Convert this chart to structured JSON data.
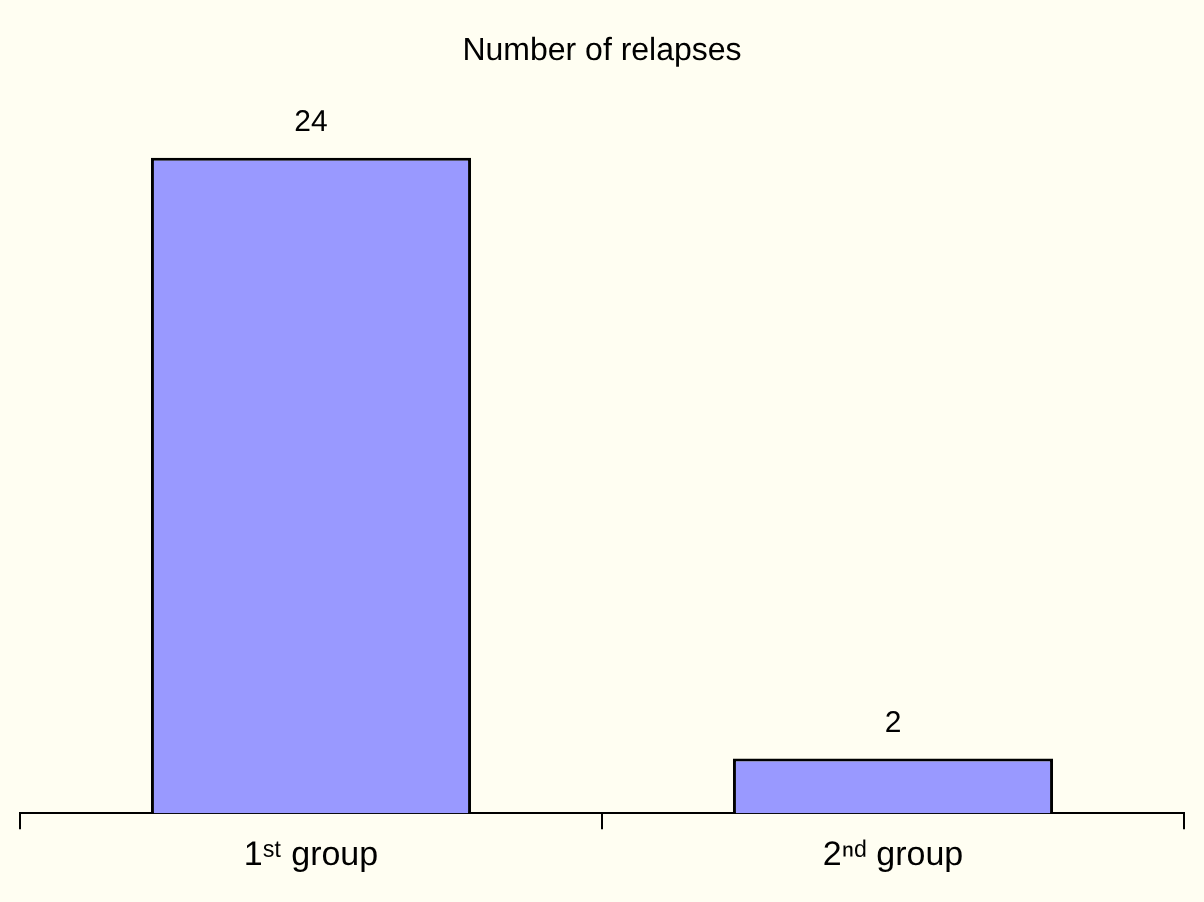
{
  "chart_data": {
    "type": "bar",
    "title": "Number of relapses",
    "categories": [
      "1ˢᵗ group",
      "2ⁿᵈ group"
    ],
    "values": [
      24,
      2
    ],
    "color": "#9999ff",
    "data_labels": true,
    "grid": false,
    "legend": false
  }
}
